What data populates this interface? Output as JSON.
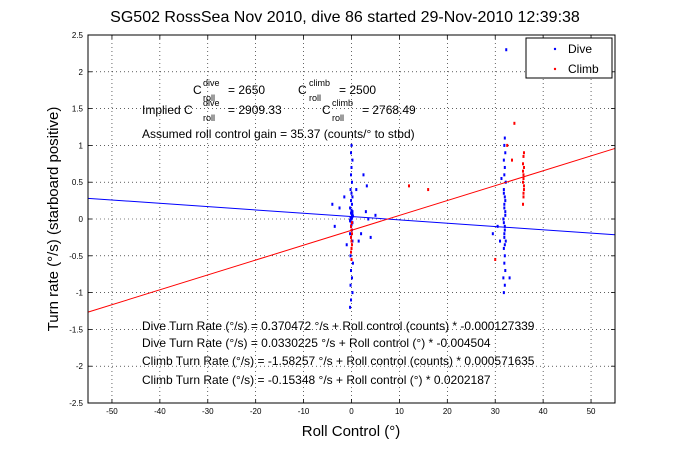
{
  "chart_data": {
    "type": "scatter",
    "title": "SG502 RossSea Nov 2010, dive 86 started 29-Nov-2010 12:39:38",
    "xlabel": "Roll Control (°)",
    "ylabel": "Turn rate (°/s) (starboard positive)",
    "xlim": [
      -55,
      55
    ],
    "ylim": [
      -2.5,
      2.5
    ],
    "xticks": [
      -50,
      -40,
      -30,
      -20,
      -10,
      0,
      10,
      20,
      30,
      40,
      50
    ],
    "yticks": [
      -2.5,
      -2,
      -1.5,
      -1,
      -0.5,
      0,
      0.5,
      1,
      1.5,
      2,
      2.5
    ],
    "grid": true,
    "legend": {
      "position": "top-right",
      "entries": [
        {
          "name": "Dive",
          "color": "#0000ff"
        },
        {
          "name": "Climb",
          "color": "#ff0000"
        }
      ]
    },
    "series": [
      {
        "name": "Dive",
        "color": "#0000ff",
        "points": [
          [
            -0.3,
            -1.2
          ],
          [
            -0.1,
            -1.1
          ],
          [
            0.2,
            -1.0
          ],
          [
            -0.2,
            -0.9
          ],
          [
            0.1,
            -0.8
          ],
          [
            -0.1,
            -0.7
          ],
          [
            0.3,
            -0.6
          ],
          [
            -0.2,
            -0.5
          ],
          [
            0.0,
            -0.4
          ],
          [
            0.2,
            -0.3
          ],
          [
            -0.3,
            -0.2
          ],
          [
            0.1,
            -0.15
          ],
          [
            -0.1,
            -0.1
          ],
          [
            0.2,
            -0.05
          ],
          [
            0.0,
            0.0
          ],
          [
            -0.2,
            0.02
          ],
          [
            0.1,
            0.05
          ],
          [
            -0.1,
            0.08
          ],
          [
            0.2,
            0.1
          ],
          [
            0.0,
            0.12
          ],
          [
            -0.3,
            0.15
          ],
          [
            0.1,
            0.2
          ],
          [
            -0.1,
            0.25
          ],
          [
            0.2,
            0.3
          ],
          [
            0.0,
            0.35
          ],
          [
            -0.2,
            0.4
          ],
          [
            0.1,
            0.5
          ],
          [
            -0.1,
            0.6
          ],
          [
            0.0,
            0.7
          ],
          [
            0.2,
            0.8
          ],
          [
            -0.1,
            0.9
          ],
          [
            0.0,
            1.0
          ],
          [
            0.1,
            0.02
          ],
          [
            -0.2,
            -0.03
          ],
          [
            0.3,
            0.04
          ],
          [
            -0.3,
            -0.02
          ],
          [
            0.2,
            0.06
          ],
          [
            0.0,
            -0.08
          ],
          [
            0.1,
            0.09
          ],
          [
            -0.1,
            0.01
          ],
          [
            -4.0,
            0.2
          ],
          [
            -3.5,
            -0.1
          ],
          [
            -2.5,
            0.15
          ],
          [
            2.0,
            -0.2
          ],
          [
            3.0,
            0.1
          ],
          [
            3.5,
            0.0
          ],
          [
            4.0,
            -0.25
          ],
          [
            5.0,
            0.05
          ],
          [
            -1.5,
            0.3
          ],
          [
            1.5,
            -0.3
          ],
          [
            2.5,
            0.6
          ],
          [
            3.2,
            0.45
          ],
          [
            -1.0,
            -0.35
          ],
          [
            1.0,
            0.4
          ],
          [
            31.8,
            -1.0
          ],
          [
            32.0,
            -0.9
          ],
          [
            31.7,
            -0.8
          ],
          [
            32.1,
            -0.7
          ],
          [
            31.9,
            -0.6
          ],
          [
            32.0,
            -0.5
          ],
          [
            31.8,
            -0.4
          ],
          [
            32.2,
            -0.3
          ],
          [
            31.9,
            -0.2
          ],
          [
            32.0,
            -0.1
          ],
          [
            31.7,
            0.0
          ],
          [
            32.1,
            0.1
          ],
          [
            31.9,
            0.2
          ],
          [
            32.0,
            0.3
          ],
          [
            31.8,
            0.4
          ],
          [
            32.2,
            0.5
          ],
          [
            31.9,
            0.6
          ],
          [
            32.0,
            0.7
          ],
          [
            31.8,
            0.8
          ],
          [
            32.1,
            0.9
          ],
          [
            31.9,
            1.0
          ],
          [
            32.0,
            1.1
          ],
          [
            31.8,
            -0.05
          ],
          [
            32.1,
            0.05
          ],
          [
            31.9,
            0.15
          ],
          [
            32.0,
            -0.15
          ],
          [
            31.9,
            -0.25
          ],
          [
            32.1,
            0.25
          ],
          [
            31.8,
            0.35
          ],
          [
            32.0,
            -0.35
          ],
          [
            32.3,
            2.3
          ],
          [
            33.0,
            -0.8
          ],
          [
            31.0,
            -0.3
          ],
          [
            30.5,
            -0.1
          ],
          [
            29.5,
            -0.2
          ],
          [
            31.3,
            0.55
          ]
        ]
      },
      {
        "name": "Climb",
        "color": "#ff0000",
        "points": [
          [
            0.0,
            -0.55
          ],
          [
            -0.1,
            -0.45
          ],
          [
            0.1,
            -0.35
          ],
          [
            0.0,
            -0.3
          ],
          [
            -0.1,
            -0.25
          ],
          [
            0.1,
            -0.2
          ],
          [
            0.0,
            -0.15
          ],
          [
            -0.1,
            -0.1
          ],
          [
            0.1,
            -0.05
          ],
          [
            0.0,
            -0.4
          ],
          [
            12.0,
            0.45
          ],
          [
            16.0,
            0.4
          ],
          [
            30.0,
            -0.55
          ],
          [
            35.8,
            0.2
          ],
          [
            35.9,
            0.3
          ],
          [
            36.0,
            0.4
          ],
          [
            35.8,
            0.5
          ],
          [
            35.9,
            0.6
          ],
          [
            36.0,
            0.7
          ],
          [
            35.8,
            0.75
          ],
          [
            35.9,
            0.85
          ],
          [
            36.0,
            0.9
          ],
          [
            35.9,
            0.55
          ],
          [
            35.8,
            0.65
          ],
          [
            36.0,
            0.45
          ],
          [
            35.9,
            0.35
          ],
          [
            34.0,
            1.3
          ],
          [
            32.5,
            1.0
          ],
          [
            33.5,
            0.8
          ]
        ]
      }
    ],
    "fit_lines": [
      {
        "series": "Dive",
        "color": "#0000ff",
        "slope": -0.004504,
        "intercept": 0.0330225
      },
      {
        "series": "Climb",
        "color": "#ff0000",
        "slope": 0.0202187,
        "intercept": -0.15348
      }
    ],
    "annotations": {
      "c_dive_label": "C",
      "c_dive_sup": "dive",
      "c_dive_sub": "roll",
      "c_dive_value": "= 2650",
      "c_climb_label": "C",
      "c_climb_sup": "climb",
      "c_climb_sub": "roll",
      "c_climb_value": "= 2500",
      "implied_prefix": "Implied C",
      "implied_dive_sup": "dive",
      "implied_dive_sub": "roll",
      "implied_dive_value": "= 2909.33",
      "implied_climb_label": "C",
      "implied_climb_sup": "climb",
      "implied_climb_sub": "roll",
      "implied_climb_value": "= 2768.49",
      "gain": "Assumed roll control gain = 35.37 (counts/° to stbd)",
      "fit1": "Dive Turn Rate (°/s) = 0.370472 °/s + Roll control (counts) * -0.000127339",
      "fit2": "Dive Turn Rate (°/s) = 0.0330225 °/s + Roll control (°) * -0.004504",
      "fit3": "Climb Turn Rate (°/s) = -1.58257 °/s + Roll control (counts) * 0.000571635",
      "fit4": "Climb Turn Rate (°/s) = -0.15348 °/s + Roll control (°) * 0.0202187"
    }
  }
}
